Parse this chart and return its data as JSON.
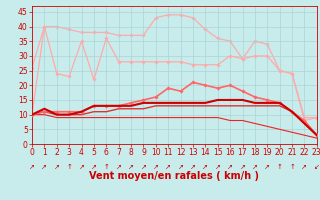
{
  "xlabel": "Vent moyen/en rafales ( km/h )",
  "xlim": [
    0,
    23
  ],
  "ylim": [
    0,
    47
  ],
  "yticks": [
    0,
    5,
    10,
    15,
    20,
    25,
    30,
    35,
    40,
    45
  ],
  "xticks": [
    0,
    1,
    2,
    3,
    4,
    5,
    6,
    7,
    8,
    9,
    10,
    11,
    12,
    13,
    14,
    15,
    16,
    17,
    18,
    19,
    20,
    21,
    22,
    23
  ],
  "bg_color": "#c8ecec",
  "grid_color": "#aad4d4",
  "arrows": [
    "↗",
    "↗",
    "↗",
    "↑",
    "↗",
    "↗",
    "↑",
    "↗",
    "↗",
    "↗",
    "↗",
    "↗",
    "↗",
    "↗",
    "↗",
    "↗",
    "↗",
    "↗",
    "↗",
    "↗",
    "↑",
    "↑",
    "↗",
    "↙"
  ],
  "series": [
    {
      "x": [
        0,
        1,
        2,
        3,
        4,
        5,
        6,
        7,
        8,
        9,
        10,
        11,
        12,
        13,
        14,
        15,
        16,
        17,
        18,
        19,
        20,
        21,
        22,
        23
      ],
      "y": [
        10,
        40,
        40,
        39,
        38,
        38,
        38,
        37,
        37,
        37,
        43,
        44,
        44,
        43,
        39,
        36,
        35,
        29,
        35,
        34,
        25,
        24,
        8,
        9
      ],
      "color": "#ffaaaa",
      "linewidth": 0.9,
      "marker": "D",
      "markersize": 1.8,
      "zorder": 1
    },
    {
      "x": [
        0,
        1,
        2,
        3,
        4,
        5,
        6,
        7,
        8,
        9,
        10,
        11,
        12,
        13,
        14,
        15,
        16,
        17,
        18,
        19,
        20,
        21,
        22,
        23
      ],
      "y": [
        26,
        40,
        24,
        23,
        35,
        22,
        36,
        28,
        28,
        28,
        28,
        28,
        28,
        27,
        27,
        27,
        30,
        29,
        30,
        30,
        25,
        24,
        9,
        9
      ],
      "color": "#ffaaaa",
      "linewidth": 0.9,
      "marker": "D",
      "markersize": 1.8,
      "zorder": 2
    },
    {
      "x": [
        0,
        1,
        2,
        3,
        4,
        5,
        6,
        7,
        8,
        9,
        10,
        11,
        12,
        13,
        14,
        15,
        16,
        17,
        18,
        19,
        20,
        21,
        22,
        23
      ],
      "y": [
        10,
        11,
        11,
        11,
        11,
        13,
        13,
        13,
        14,
        15,
        16,
        19,
        18,
        21,
        20,
        19,
        20,
        18,
        16,
        15,
        14,
        11,
        8,
        3
      ],
      "color": "#ff6666",
      "linewidth": 1.2,
      "marker": "D",
      "markersize": 1.8,
      "zorder": 4
    },
    {
      "x": [
        0,
        1,
        2,
        3,
        4,
        5,
        6,
        7,
        8,
        9,
        10,
        11,
        12,
        13,
        14,
        15,
        16,
        17,
        18,
        19,
        20,
        21,
        22,
        23
      ],
      "y": [
        10,
        12,
        10,
        10,
        11,
        13,
        13,
        13,
        13,
        14,
        14,
        14,
        14,
        14,
        14,
        15,
        15,
        15,
        14,
        14,
        14,
        11,
        7,
        3
      ],
      "color": "#cc0000",
      "linewidth": 1.5,
      "marker": null,
      "markersize": 0,
      "zorder": 5
    },
    {
      "x": [
        0,
        1,
        2,
        3,
        4,
        5,
        6,
        7,
        8,
        9,
        10,
        11,
        12,
        13,
        14,
        15,
        16,
        17,
        18,
        19,
        20,
        21,
        22,
        23
      ],
      "y": [
        10,
        11,
        10,
        10,
        10,
        11,
        11,
        12,
        12,
        12,
        13,
        13,
        13,
        13,
        13,
        13,
        13,
        13,
        13,
        13,
        13,
        11,
        7,
        3
      ],
      "color": "#dd3333",
      "linewidth": 1.0,
      "marker": null,
      "markersize": 0,
      "zorder": 3
    },
    {
      "x": [
        0,
        1,
        2,
        3,
        4,
        5,
        6,
        7,
        8,
        9,
        10,
        11,
        12,
        13,
        14,
        15,
        16,
        17,
        18,
        19,
        20,
        21,
        22,
        23
      ],
      "y": [
        10,
        10,
        9,
        9,
        9,
        9,
        9,
        9,
        9,
        9,
        9,
        9,
        9,
        9,
        9,
        9,
        8,
        8,
        7,
        6,
        5,
        4,
        3,
        2
      ],
      "color": "#ee2222",
      "linewidth": 0.8,
      "marker": null,
      "markersize": 0,
      "zorder": 2
    }
  ],
  "tick_fontsize": 5.5,
  "xlabel_fontsize": 7.0
}
